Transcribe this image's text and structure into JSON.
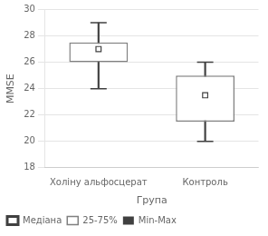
{
  "chart_data": {
    "type": "box",
    "xlabel": "Група",
    "ylabel": "MMSE",
    "categories": [
      "Холіну альфосцерат",
      "Контроль"
    ],
    "series": [
      {
        "name": "Медіана",
        "type": "median",
        "color": "#404040",
        "values": [
          27.0,
          23.5
        ]
      },
      {
        "name": "25-75%",
        "type": "box",
        "color": "#808080",
        "values": [
          [
            26.0,
            27.5
          ],
          [
            21.5,
            25.0
          ]
        ]
      },
      {
        "name": "Min-Max",
        "type": "range",
        "color": "#404040",
        "values": [
          [
            24.0,
            29.0
          ],
          [
            20.0,
            26.0
          ]
        ]
      }
    ],
    "ylim": [
      18,
      30
    ],
    "yticks": [
      18,
      20,
      22,
      24,
      26,
      28,
      30
    ],
    "grid": "y",
    "legend": "lower left"
  }
}
